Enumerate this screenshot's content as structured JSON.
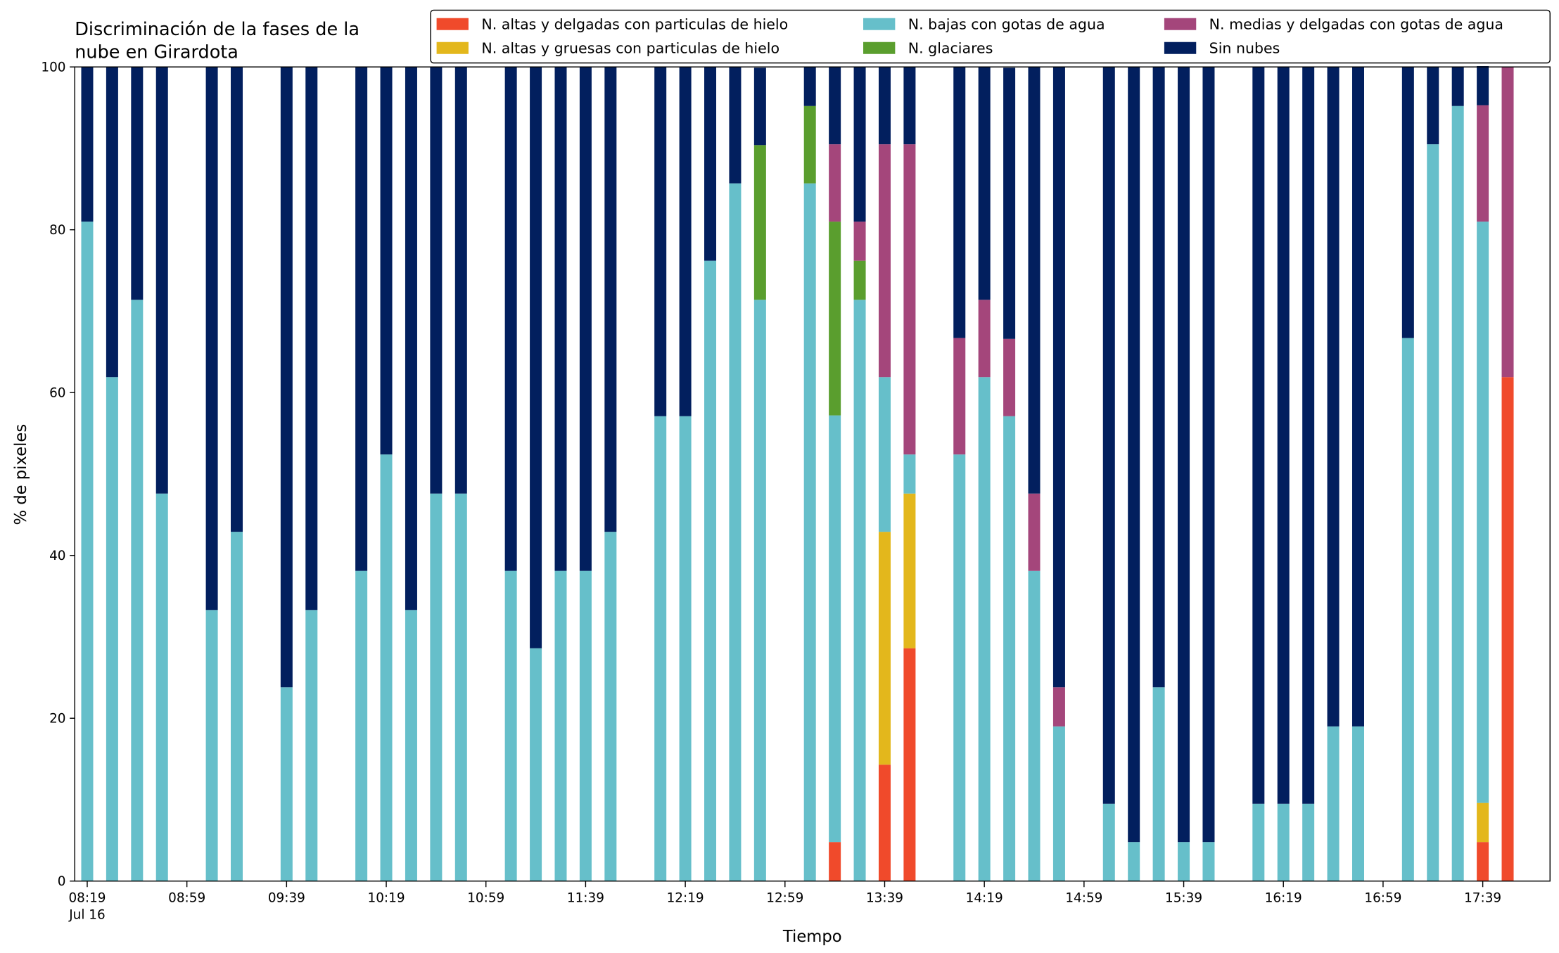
{
  "chart_data": {
    "type": "stacked_bar",
    "title": [
      "Discriminación de la fases de la",
      "nube en Girardota"
    ],
    "xlabel": "Tiempo",
    "ylabel": "% de pixeles",
    "x_date": "Jul 16",
    "x": [
      "08:19",
      "08:29",
      "08:39",
      "08:49",
      "09:09",
      "09:19",
      "09:39",
      "09:49",
      "10:09",
      "10:19",
      "10:29",
      "10:39",
      "10:49",
      "11:09",
      "11:19",
      "11:29",
      "11:39",
      "11:49",
      "12:09",
      "12:19",
      "12:29",
      "12:39",
      "12:49",
      "13:09",
      "13:19",
      "13:29",
      "13:39",
      "13:49",
      "14:09",
      "14:19",
      "14:29",
      "14:39",
      "14:49",
      "15:09",
      "15:19",
      "15:29",
      "15:39",
      "15:49",
      "16:09",
      "16:19",
      "16:29",
      "16:39",
      "16:49",
      "17:09",
      "17:19",
      "17:29",
      "17:39",
      "17:49"
    ],
    "xlim": [
      "08:14",
      "18:06"
    ],
    "xticks": [
      "08:19",
      "08:59",
      "09:39",
      "10:19",
      "10:59",
      "11:39",
      "12:19",
      "12:59",
      "13:39",
      "14:19",
      "14:59",
      "15:39",
      "16:19",
      "16:59",
      "17:39"
    ],
    "ylim": [
      0,
      100
    ],
    "yticks": [
      0,
      20,
      40,
      60,
      80,
      100
    ],
    "legend_position": "upper right",
    "series": [
      {
        "name": "N. altas y delgadas con particulas de hielo",
        "color": "#f04a2b",
        "values": [
          0,
          0,
          0,
          0,
          0,
          0,
          0,
          0,
          0,
          0,
          0,
          0,
          0,
          0,
          0,
          0,
          0,
          0,
          0,
          0,
          0,
          0,
          0,
          0,
          4.8,
          0,
          14.3,
          28.6,
          0,
          0,
          0,
          0,
          0,
          0,
          0,
          0,
          0,
          0,
          0,
          0,
          0,
          0,
          0,
          0,
          0,
          0,
          4.8,
          61.9
        ]
      },
      {
        "name": "N. altas y gruesas con particulas de hielo",
        "color": "#e3b71c",
        "values": [
          0,
          0,
          0,
          0,
          0,
          0,
          0,
          0,
          0,
          0,
          0,
          0,
          0,
          0,
          0,
          0,
          0,
          0,
          0,
          0,
          0,
          0,
          0,
          0,
          0,
          0,
          28.6,
          19.0,
          0,
          0,
          0,
          0,
          0,
          0,
          0,
          0,
          0,
          0,
          0,
          0,
          0,
          0,
          0,
          0,
          0,
          0,
          4.8,
          0
        ]
      },
      {
        "name": "N. bajas con gotas de agua",
        "color": "#66bfca",
        "values": [
          81.0,
          61.9,
          71.4,
          47.6,
          33.3,
          42.9,
          23.8,
          33.3,
          38.1,
          52.4,
          33.3,
          47.6,
          47.6,
          38.1,
          28.6,
          38.1,
          38.1,
          42.9,
          57.1,
          57.1,
          76.2,
          85.7,
          71.4,
          85.7,
          52.4,
          71.4,
          19.0,
          4.8,
          52.4,
          61.9,
          57.1,
          38.1,
          19.0,
          9.5,
          4.8,
          23.8,
          4.8,
          4.8,
          9.5,
          9.5,
          9.5,
          19.0,
          19.0,
          66.7,
          90.5,
          95.2,
          71.4,
          0
        ]
      },
      {
        "name": "N. glaciares",
        "color": "#5a9e2e",
        "values": [
          0,
          0,
          0,
          0,
          0,
          0,
          0,
          0,
          0,
          0,
          0,
          0,
          0,
          0,
          0,
          0,
          0,
          0,
          0,
          0,
          0,
          0,
          19.0,
          9.5,
          23.8,
          4.8,
          0,
          0,
          0,
          0,
          0,
          0,
          0,
          0,
          0,
          0,
          0,
          0,
          0,
          0,
          0,
          0,
          0,
          0,
          0,
          0,
          0,
          0
        ]
      },
      {
        "name": "N. medias y delgadas con gotas de agua",
        "color": "#a4467b",
        "values": [
          0,
          0,
          0,
          0,
          0,
          0,
          0,
          0,
          0,
          0,
          0,
          0,
          0,
          0,
          0,
          0,
          0,
          0,
          0,
          0,
          0,
          0,
          0,
          0,
          9.5,
          4.8,
          28.6,
          38.1,
          14.3,
          9.5,
          9.5,
          9.5,
          4.8,
          0,
          0,
          0,
          0,
          0,
          0,
          0,
          0,
          0,
          0,
          0,
          0,
          0,
          14.3,
          38.1
        ]
      },
      {
        "name": "Sin nubes",
        "color": "#021f5e",
        "values": [
          19.0,
          38.1,
          28.6,
          52.4,
          66.7,
          57.1,
          76.2,
          66.7,
          61.9,
          47.6,
          66.7,
          52.4,
          52.4,
          61.9,
          71.4,
          61.9,
          61.9,
          57.1,
          42.9,
          42.9,
          23.8,
          14.3,
          9.5,
          4.8,
          9.5,
          19.0,
          9.5,
          9.5,
          33.3,
          28.6,
          33.3,
          52.4,
          76.2,
          90.5,
          95.2,
          76.2,
          95.2,
          95.2,
          90.5,
          90.5,
          90.5,
          81.0,
          81.0,
          33.3,
          9.5,
          4.8,
          4.8,
          0
        ]
      }
    ]
  }
}
